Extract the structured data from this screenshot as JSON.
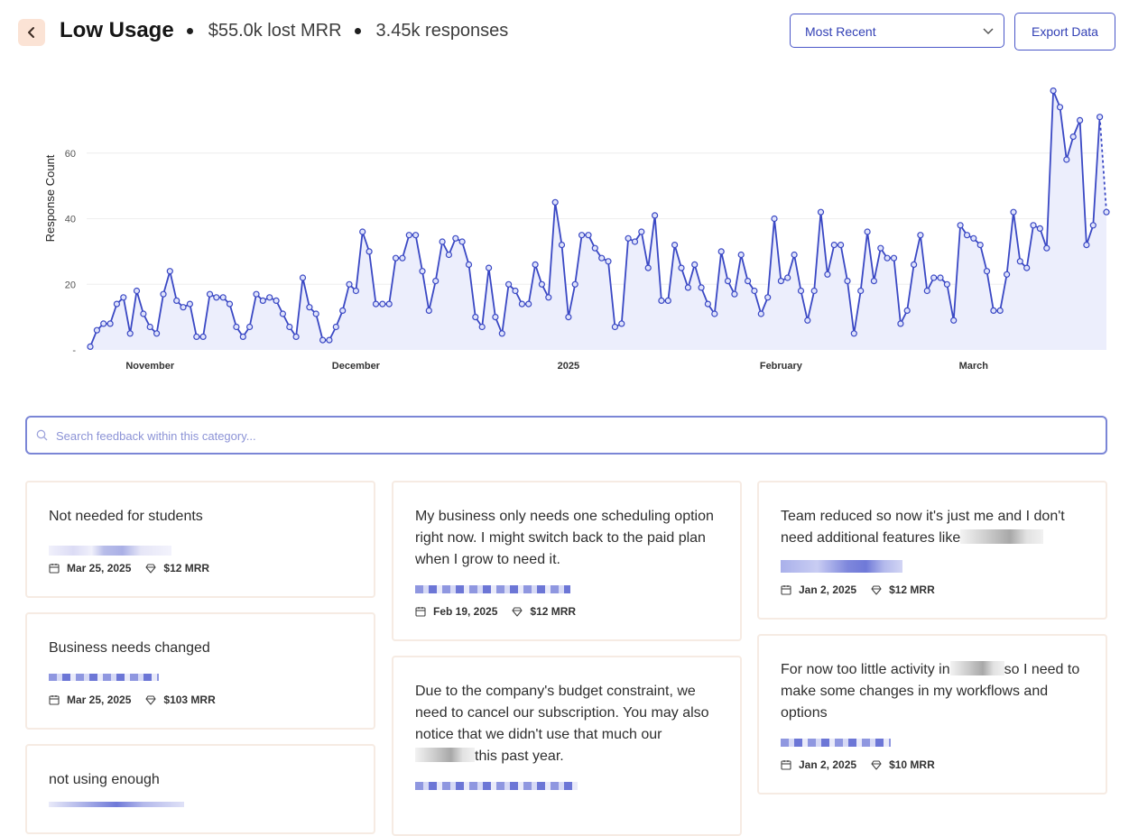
{
  "header": {
    "title": "Low Usage",
    "lost_mrr": "$55.0k lost MRR",
    "responses": "3.45k responses",
    "sort_selected": "Most Recent",
    "export_label": "Export Data"
  },
  "colors": {
    "accent": "#3341b5",
    "line": "#3a48c4",
    "fill": "#eceefc",
    "back_bg": "#fbe3d5"
  },
  "chart_data": {
    "type": "line",
    "ylabel": "Response Count",
    "ylim": [
      0,
      80
    ],
    "yticks": [
      {
        "v": 0,
        "label": "-"
      },
      {
        "v": 20,
        "label": "20"
      },
      {
        "v": 40,
        "label": "40"
      },
      {
        "v": 60,
        "label": "60"
      }
    ],
    "xticks": [
      {
        "i": 9,
        "label": "November"
      },
      {
        "i": 40,
        "label": "December"
      },
      {
        "i": 72,
        "label": "2025"
      },
      {
        "i": 104,
        "label": "February"
      },
      {
        "i": 133,
        "label": "March"
      }
    ],
    "series": [
      {
        "name": "Responses",
        "values": [
          1,
          6,
          8,
          8,
          14,
          16,
          5,
          18,
          11,
          7,
          5,
          17,
          24,
          15,
          13,
          14,
          4,
          4,
          17,
          16,
          16,
          14,
          7,
          4,
          7,
          17,
          15,
          16,
          15,
          11,
          7,
          4,
          22,
          13,
          11,
          3,
          3,
          7,
          12,
          20,
          18,
          36,
          30,
          14,
          14,
          14,
          28,
          28,
          35,
          35,
          24,
          12,
          21,
          33,
          29,
          34,
          33,
          26,
          10,
          7,
          25,
          10,
          5,
          20,
          18,
          14,
          14,
          26,
          20,
          16,
          45,
          32,
          10,
          20,
          35,
          35,
          31,
          28,
          27,
          7,
          8,
          34,
          33,
          36,
          25,
          41,
          15,
          15,
          32,
          25,
          19,
          26,
          19,
          14,
          11,
          30,
          21,
          17,
          29,
          21,
          18,
          11,
          16,
          40,
          21,
          22,
          29,
          18,
          9,
          18,
          42,
          23,
          32,
          32,
          21,
          5,
          18,
          36,
          21,
          31,
          28,
          28,
          8,
          12,
          26,
          35,
          18,
          22,
          22,
          20,
          9,
          38,
          35,
          34,
          32,
          24,
          12,
          12,
          23,
          42,
          27,
          25,
          38,
          37,
          31,
          79,
          74,
          58,
          65,
          70,
          32,
          38,
          71,
          42
        ]
      }
    ]
  },
  "search": {
    "placeholder": "Search feedback within this category..."
  },
  "cards": [
    {
      "text": "Not needed for students",
      "date": "Mar 25, 2025",
      "mrr": "$12 MRR"
    },
    {
      "text": "Business needs changed",
      "date": "Mar 25, 2025",
      "mrr": "$103 MRR"
    },
    {
      "text": "not using enough",
      "date": "",
      "mrr": ""
    },
    {
      "text": "My business only needs one scheduling option right now. I might switch back to the paid plan when I grow to need it.",
      "date": "Feb 19, 2025",
      "mrr": "$12 MRR"
    },
    {
      "text_a": "Due to the company's budget constraint, we need to cancel our subscription. You may also notice that we didn't use that much our ",
      "text_b": "this past year."
    },
    {
      "text_a": "Team reduced so now it's just me and I don't need additional features like",
      "date": "Jan 2, 2025",
      "mrr": "$12 MRR"
    },
    {
      "text_a": "For now too little activity in",
      "text_b": "so I need to make some changes in my workflows and options",
      "date": "Jan 2, 2025",
      "mrr": "$10 MRR"
    }
  ]
}
